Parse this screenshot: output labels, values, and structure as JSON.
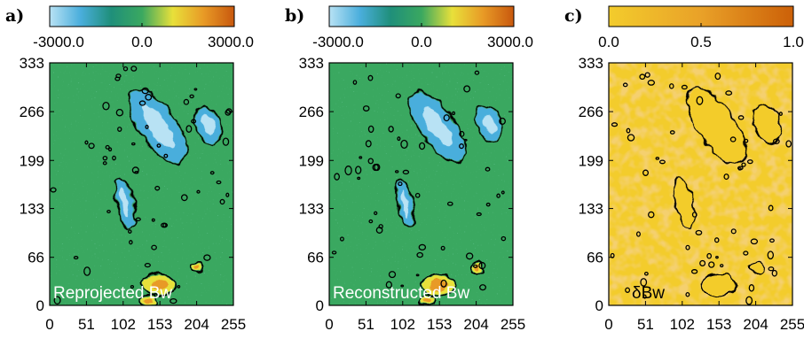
{
  "colors": {
    "diverging": [
      "#b8e2f4",
      "#4aaedc",
      "#1f8f7a",
      "#3aa860",
      "#e8e03a",
      "#e89a26",
      "#c8580e"
    ],
    "sequential": [
      "#f3cc2c",
      "#e9a128",
      "#cc6008"
    ],
    "field_background": [
      "#3aa860",
      "#e6a328"
    ],
    "contour": "#000000"
  },
  "chart_data": [
    {
      "type": "heatmap",
      "panel_label": "a)",
      "annotation": "Reprojected Bw",
      "colorbar": {
        "ticks": [
          "-3000.0",
          "0.0",
          "3000.0"
        ],
        "range": [
          -3000,
          3000
        ],
        "colormap": "diverging"
      },
      "x_ticks": [
        "0",
        "51",
        "102",
        "153",
        "204",
        "255"
      ],
      "y_ticks": [
        "0",
        "66",
        "133",
        "199",
        "266",
        "333"
      ],
      "xlim": [
        0,
        255
      ],
      "ylim": [
        0,
        333
      ],
      "background": "diverging-mid",
      "features": [
        {
          "kind": "negative",
          "cx": 150,
          "cy": 246,
          "rx": 24,
          "ry": 58,
          "angle": -35
        },
        {
          "kind": "negative",
          "cx": 220,
          "cy": 248,
          "rx": 16,
          "ry": 25,
          "angle": -20
        },
        {
          "kind": "negative",
          "cx": 105,
          "cy": 140,
          "rx": 10,
          "ry": 34,
          "angle": -12
        },
        {
          "kind": "positive",
          "cx": 152,
          "cy": 28,
          "rx": 22,
          "ry": 13,
          "angle": 0
        },
        {
          "kind": "positive",
          "cx": 205,
          "cy": 52,
          "rx": 7,
          "ry": 6,
          "angle": 0
        },
        {
          "kind": "positive",
          "cx": 137,
          "cy": 6,
          "rx": 10,
          "ry": 6,
          "angle": 0
        }
      ]
    },
    {
      "type": "heatmap",
      "panel_label": "b)",
      "annotation": "Reconstructed Bw",
      "colorbar": {
        "ticks": [
          "-3000.0",
          "0.0",
          "3000.0"
        ],
        "range": [
          -3000,
          3000
        ],
        "colormap": "diverging"
      },
      "x_ticks": [
        "0",
        "51",
        "102",
        "153",
        "204",
        "255"
      ],
      "y_ticks": [
        "0",
        "66",
        "133",
        "199",
        "266",
        "333"
      ],
      "xlim": [
        0,
        255
      ],
      "ylim": [
        0,
        333
      ],
      "background": "diverging-mid",
      "features": [
        {
          "kind": "negative",
          "cx": 150,
          "cy": 246,
          "rx": 22,
          "ry": 56,
          "angle": -35
        },
        {
          "kind": "negative",
          "cx": 222,
          "cy": 250,
          "rx": 15,
          "ry": 24,
          "angle": -20
        },
        {
          "kind": "negative",
          "cx": 105,
          "cy": 140,
          "rx": 9,
          "ry": 32,
          "angle": -12
        },
        {
          "kind": "positive",
          "cx": 152,
          "cy": 28,
          "rx": 22,
          "ry": 13,
          "angle": 0
        },
        {
          "kind": "positive",
          "cx": 205,
          "cy": 52,
          "rx": 7,
          "ry": 6,
          "angle": 0
        },
        {
          "kind": "positive",
          "cx": 137,
          "cy": 6,
          "rx": 10,
          "ry": 6,
          "angle": 0
        }
      ]
    },
    {
      "type": "heatmap",
      "panel_label": "c)",
      "annotation": "δBw",
      "colorbar": {
        "ticks": [
          "0.0",
          "0.5",
          "1.0"
        ],
        "range": [
          0,
          1
        ],
        "colormap": "sequential"
      },
      "x_ticks": [
        "0",
        "51",
        "102",
        "153",
        "204",
        "255"
      ],
      "y_ticks": [
        "0",
        "66",
        "133",
        "199",
        "266",
        "333"
      ],
      "xlim": [
        0,
        255
      ],
      "ylim": [
        0,
        333
      ],
      "background": "sequential-noise",
      "features": [
        {
          "kind": "low",
          "cx": 150,
          "cy": 246,
          "rx": 24,
          "ry": 58,
          "angle": -35
        },
        {
          "kind": "low",
          "cx": 220,
          "cy": 248,
          "rx": 16,
          "ry": 25,
          "angle": -20
        },
        {
          "kind": "low",
          "cx": 105,
          "cy": 140,
          "rx": 10,
          "ry": 34,
          "angle": -12
        },
        {
          "kind": "low",
          "cx": 152,
          "cy": 28,
          "rx": 22,
          "ry": 13,
          "angle": 0
        },
        {
          "kind": "low",
          "cx": 205,
          "cy": 52,
          "rx": 7,
          "ry": 6,
          "angle": 0
        }
      ]
    }
  ]
}
